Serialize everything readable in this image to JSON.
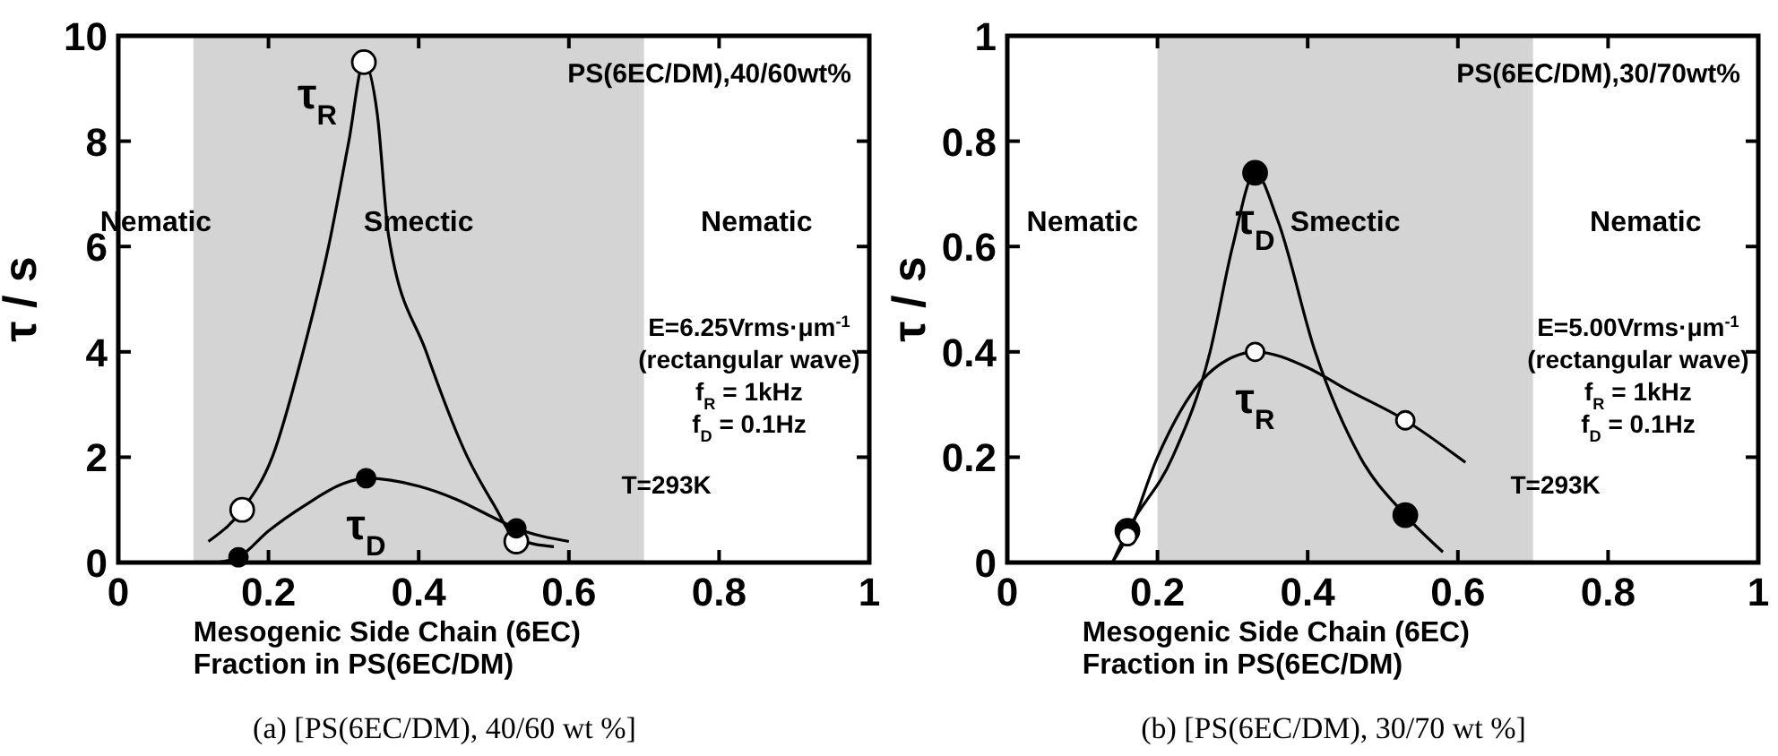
{
  "chart_data": [
    {
      "type": "scatter",
      "title": "(a) [PS(6EC/DM), 40/60 wt %]",
      "subtitle": "PS(6EC/DM),40/60wt%",
      "xlabel": "Mesogenic Side Chain (6EC)\nFraction in PS(6EC/DM)",
      "ylabel": "τ / s",
      "xlim": [
        0,
        1
      ],
      "xticks": [
        0,
        0.2,
        0.4,
        0.6,
        0.8,
        1
      ],
      "ylim": [
        0,
        10
      ],
      "yticks": [
        0,
        2,
        4,
        6,
        8,
        10
      ],
      "grid": false,
      "line_style": "solid",
      "bands": [
        {
          "axis": "x",
          "from": 0.1,
          "to": 0.7,
          "color": "#d4d4d4"
        }
      ],
      "annotations": [
        "Nematic",
        "Smectic",
        "Nematic",
        "E=6.25Vrms·μm$^{-1}$",
        "(rectangular wave)",
        "f$_{R}$ = 1kHz",
        "f$_{D}$ = 0.1Hz",
        "T=293K"
      ],
      "series": [
        {
          "name": "τ$_{R}$",
          "type": "scatter",
          "marker": "circle",
          "color": "#ffffff",
          "x": [
            0.165,
            0.327,
            0.53
          ],
          "values": [
            1.0,
            9.5,
            0.4
          ]
        },
        {
          "name": "τ$_{D}$",
          "type": "scatter",
          "marker": "circle",
          "color": "#000000",
          "x": [
            0.16,
            0.33,
            0.53
          ],
          "values": [
            0.1,
            1.6,
            0.65
          ]
        },
        {
          "type": "line",
          "marker": "none",
          "color": "#000000",
          "x": [
            0.12,
            0.165,
            0.205,
            0.246,
            0.28,
            0.307,
            0.327,
            0.345,
            0.36,
            0.41,
            0.465,
            0.5,
            0.53,
            0.58
          ],
          "values": [
            0.4,
            1.0,
            2,
            4,
            6,
            8,
            9.5,
            8.5,
            6.2,
            4.0,
            2.0,
            1.1,
            0.45,
            0.3
          ]
        },
        {
          "type": "line",
          "marker": "none",
          "color": "#000000",
          "x": [
            0.13,
            0.16,
            0.2,
            0.25,
            0.3,
            0.33,
            0.4,
            0.45,
            0.5,
            0.53,
            0.6
          ],
          "values": [
            0.0,
            0.1,
            0.6,
            1.1,
            1.5,
            1.6,
            1.45,
            1.2,
            0.85,
            0.65,
            0.4
          ]
        }
      ]
    },
    {
      "type": "scatter",
      "title": "(b) [PS(6EC/DM), 30/70 wt %]",
      "subtitle": "PS(6EC/DM),30/70wt%",
      "xlabel": "Mesogenic Side Chain (6EC)\nFraction in PS(6EC/DM)",
      "ylabel": "τ / s",
      "xlim": [
        0,
        1
      ],
      "xticks": [
        0,
        0.2,
        0.4,
        0.6,
        0.8,
        1
      ],
      "ylim": [
        0,
        1
      ],
      "yticks": [
        0,
        0.2,
        0.4,
        0.6,
        0.8,
        1
      ],
      "grid": false,
      "line_style": "solid",
      "bands": [
        {
          "axis": "x",
          "from": 0.2,
          "to": 0.7,
          "color": "#d4d4d4"
        }
      ],
      "annotations": [
        "Nematic",
        "Smectic",
        "Nematic",
        "E=5.00Vrms·μm$^{-1}$",
        "(rectangular wave)",
        "f$_{R}$ = 1kHz",
        "f$_{D}$ = 0.1Hz",
        "T=293K"
      ],
      "series": [
        {
          "name": "τ$_{D}$",
          "type": "scatter",
          "marker": "circle",
          "color": "#000000",
          "x": [
            0.16,
            0.33,
            0.53
          ],
          "values": [
            0.06,
            0.74,
            0.09
          ]
        },
        {
          "name": "τ$_{R}$",
          "type": "scatter",
          "marker": "circle",
          "color": "#ffffff",
          "x": [
            0.16,
            0.33,
            0.53
          ],
          "values": [
            0.05,
            0.4,
            0.27
          ]
        },
        {
          "type": "line",
          "marker": "none",
          "color": "#000000",
          "x": [
            0.14,
            0.16,
            0.22,
            0.27,
            0.3,
            0.33,
            0.36,
            0.41,
            0.47,
            0.53,
            0.58
          ],
          "values": [
            0.0,
            0.06,
            0.2,
            0.4,
            0.6,
            0.74,
            0.65,
            0.4,
            0.2,
            0.09,
            0.02
          ]
        },
        {
          "type": "line",
          "marker": "none",
          "color": "#000000",
          "x": [
            0.14,
            0.16,
            0.2,
            0.25,
            0.3,
            0.33,
            0.4,
            0.45,
            0.53,
            0.61
          ],
          "values": [
            0.0,
            0.05,
            0.2,
            0.33,
            0.39,
            0.4,
            0.37,
            0.33,
            0.27,
            0.19
          ]
        }
      ]
    }
  ]
}
